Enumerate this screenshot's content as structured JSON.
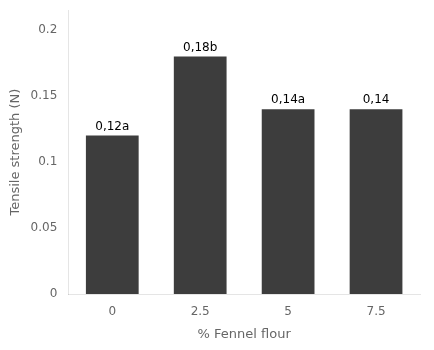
{
  "chart_data": {
    "type": "bar",
    "xlabel": "% Fennel flour",
    "ylabel": "Tensile strength (N)",
    "categories": [
      "0",
      "2.5",
      "5",
      "7.5"
    ],
    "values": [
      0.12,
      0.18,
      0.14,
      0.14
    ],
    "value_labels": [
      "0,12a",
      "0,18b",
      "0,14a",
      "0,14"
    ],
    "data_labels": true,
    "color": "#3d3d3d",
    "ylim": [
      0,
      0.215
    ],
    "yticks": [
      0,
      0.05,
      0.1,
      0.15,
      0.2
    ],
    "grid": false
  }
}
